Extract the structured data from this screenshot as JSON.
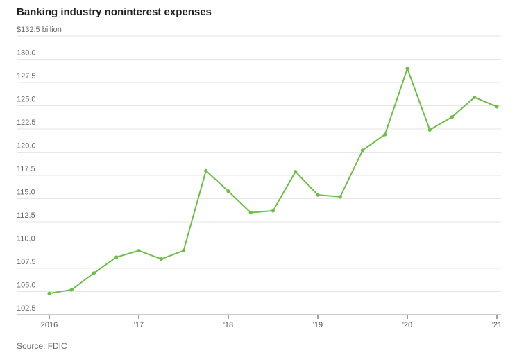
{
  "header": {
    "title": "Banking industry noninterest expenses"
  },
  "footer": {
    "source": "Source: FDIC"
  },
  "colors": {
    "series": "#6cbf45",
    "grid": "#e6e6e6",
    "baseline": "#9a9a9a",
    "text": "#666666"
  },
  "chart_data": {
    "type": "line",
    "title": "Banking industry noninterest expenses",
    "xlabel": "",
    "ylabel": "",
    "unit_label": "billion",
    "ylim": [
      102.5,
      132.5
    ],
    "y_ticks": [
      102.5,
      105.0,
      107.5,
      110.0,
      112.5,
      115.0,
      117.5,
      120.0,
      122.5,
      125.0,
      127.5,
      130.0,
      132.5
    ],
    "y_tick_labels": [
      "102.5",
      "105.0",
      "107.5",
      "110.0",
      "112.5",
      "115.0",
      "117.5",
      "120.0",
      "122.5",
      "125.0",
      "127.5",
      "130.0",
      "$132.5 billion"
    ],
    "x_ticks": [
      "2016",
      "'17",
      "'18",
      "'19",
      "'20",
      "'21"
    ],
    "grid": true,
    "legend": "none",
    "series": [
      {
        "x": [
          "2016 Q1",
          "2016 Q2",
          "2016 Q3",
          "2016 Q4",
          "2017 Q1",
          "2017 Q2",
          "2017 Q3",
          "2017 Q4",
          "2018 Q1",
          "2018 Q2",
          "2018 Q3",
          "2018 Q4",
          "2019 Q1",
          "2019 Q2",
          "2019 Q3",
          "2019 Q4",
          "2020 Q1",
          "2020 Q2",
          "2020 Q3",
          "2020 Q4",
          "2021 Q1"
        ],
        "values": [
          104.8,
          105.2,
          107.0,
          108.7,
          109.4,
          108.5,
          109.4,
          118.0,
          115.8,
          113.5,
          113.7,
          117.9,
          115.4,
          115.2,
          120.2,
          121.9,
          129.0,
          122.4,
          123.8,
          125.9,
          124.9
        ]
      }
    ]
  }
}
